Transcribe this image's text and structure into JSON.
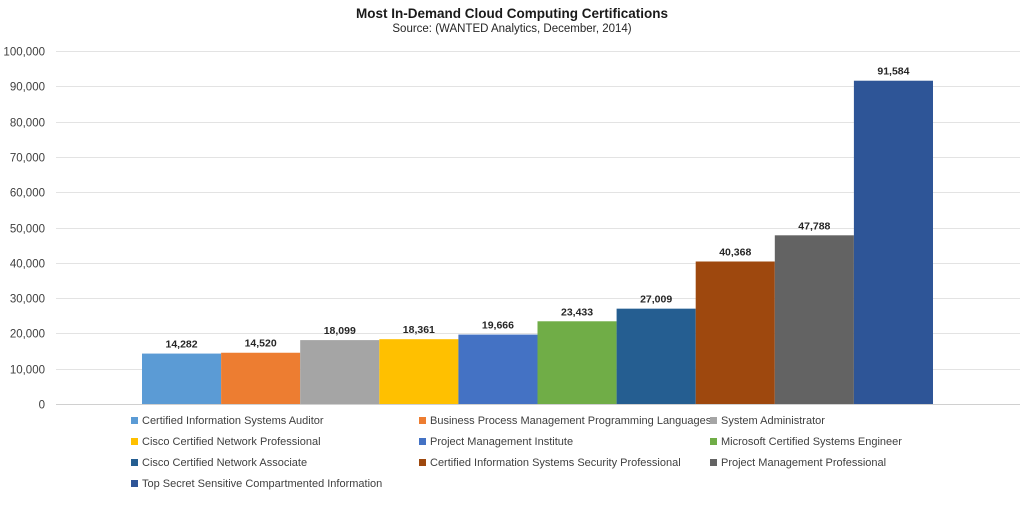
{
  "chart_data": {
    "type": "bar",
    "title": "Most In-Demand Cloud Computing Certifications",
    "subtitle": "Source: (WANTED Analytics, December, 2014)",
    "xlabel": "",
    "ylabel": "",
    "ylim": [
      0,
      100000
    ],
    "yticks": [
      0,
      10000,
      20000,
      30000,
      40000,
      50000,
      60000,
      70000,
      80000,
      90000,
      100000
    ],
    "ytick_labels": [
      "0",
      "10,000",
      "20,000",
      "30,000",
      "40,000",
      "50,000",
      "60,000",
      "70,000",
      "80,000",
      "90,000",
      "100,000"
    ],
    "grid": true,
    "legend_position": "bottom",
    "series": [
      {
        "name": "Certified Information Systems Auditor",
        "value": 14282,
        "label": "14,282",
        "color": "#5b9bd5"
      },
      {
        "name": "Business Process Management Programming Languages",
        "value": 14520,
        "label": "14,520",
        "color": "#ed7d31"
      },
      {
        "name": "System Administrator",
        "value": 18099,
        "label": "18,099",
        "color": "#a5a5a5"
      },
      {
        "name": "Cisco Certified Network Professional",
        "value": 18361,
        "label": "18,361",
        "color": "#ffc000"
      },
      {
        "name": "Project Management Institute",
        "value": 19666,
        "label": "19,666",
        "color": "#4472c4"
      },
      {
        "name": "Microsoft Certified Systems Engineer",
        "value": 23433,
        "label": "23,433",
        "color": "#70ad47"
      },
      {
        "name": "Cisco Certified Network Associate",
        "value": 27009,
        "label": "27,009",
        "color": "#255e91"
      },
      {
        "name": "Certified Information Systems Security Professional",
        "value": 40368,
        "label": "40,368",
        "color": "#9e480e"
      },
      {
        "name": "Project Management Professional",
        "value": 47788,
        "label": "47,788",
        "color": "#636363"
      },
      {
        "name": "Top Secret Sensitive Compartmented Information",
        "value": 91584,
        "label": "91,584",
        "color": "#2e5597"
      }
    ]
  }
}
